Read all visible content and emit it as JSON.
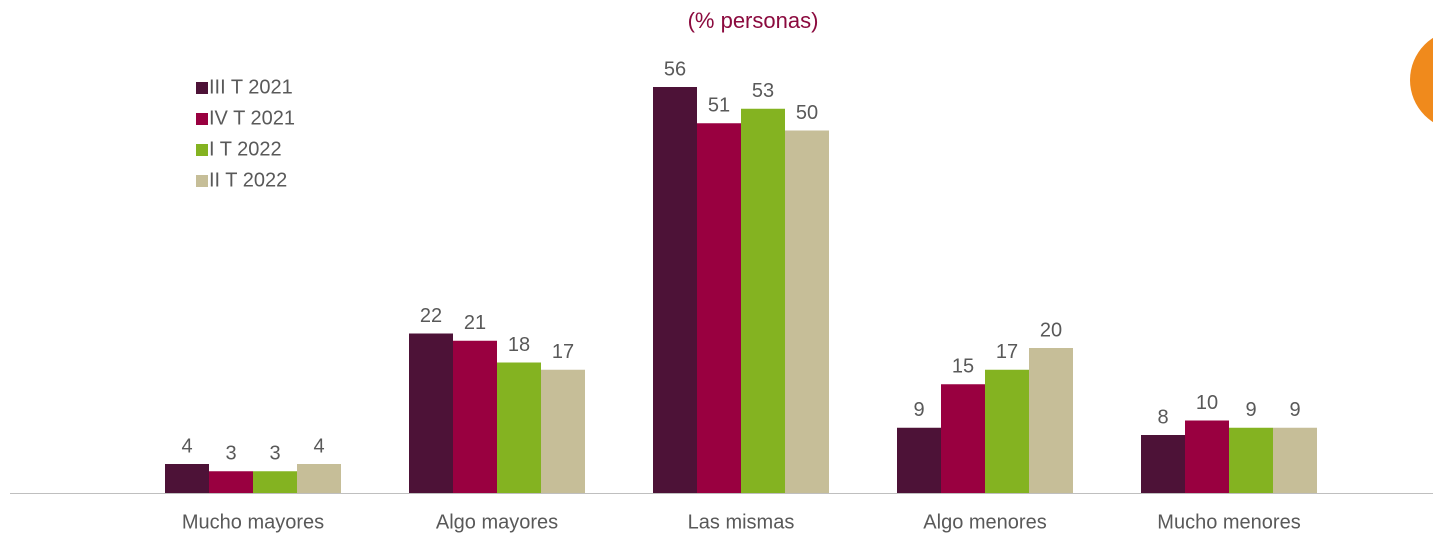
{
  "chart_data": {
    "type": "bar",
    "title": "(% personas)",
    "categories": [
      "Mucho mayores",
      "Algo mayores",
      "Las mismas",
      "Algo menores",
      "Mucho menores"
    ],
    "series": [
      {
        "name": "III T 2021",
        "color": "#4d1237",
        "values": [
          4,
          22,
          56,
          9,
          8
        ]
      },
      {
        "name": "IV T 2021",
        "color": "#990040",
        "values": [
          3,
          21,
          51,
          15,
          10
        ]
      },
      {
        "name": "I T 2022",
        "color": "#84b321",
        "values": [
          3,
          18,
          53,
          17,
          9
        ]
      },
      {
        "name": "II T 2022",
        "color": "#c6be98",
        "values": [
          4,
          17,
          50,
          20,
          9
        ]
      }
    ],
    "legend": "top-left"
  }
}
